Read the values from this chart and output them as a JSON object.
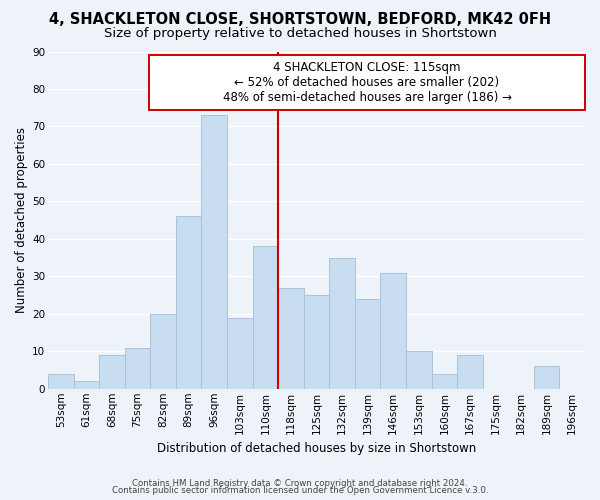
{
  "title": "4, SHACKLETON CLOSE, SHORTSTOWN, BEDFORD, MK42 0FH",
  "subtitle": "Size of property relative to detached houses in Shortstown",
  "xlabel": "Distribution of detached houses by size in Shortstown",
  "ylabel": "Number of detached properties",
  "footer_line1": "Contains HM Land Registry data © Crown copyright and database right 2024.",
  "footer_line2": "Contains public sector information licensed under the Open Government Licence v.3.0.",
  "bin_labels": [
    "53sqm",
    "61sqm",
    "68sqm",
    "75sqm",
    "82sqm",
    "89sqm",
    "96sqm",
    "103sqm",
    "110sqm",
    "118sqm",
    "125sqm",
    "132sqm",
    "139sqm",
    "146sqm",
    "153sqm",
    "160sqm",
    "167sqm",
    "175sqm",
    "182sqm",
    "189sqm",
    "196sqm"
  ],
  "bar_heights": [
    4,
    2,
    9,
    11,
    20,
    46,
    73,
    19,
    38,
    27,
    25,
    35,
    24,
    31,
    10,
    4,
    9,
    0,
    0,
    6,
    0
  ],
  "bar_color": "#c9ddf0",
  "bar_edge_color": "#a8c4dc",
  "vline_color": "#cc0000",
  "ann_line1": "4 SHACKLETON CLOSE: 115sqm",
  "ann_line2": "← 52% of detached houses are smaller (202)",
  "ann_line3": "48% of semi-detached houses are larger (186) →",
  "ylim": [
    0,
    90
  ],
  "yticks": [
    0,
    10,
    20,
    30,
    40,
    50,
    60,
    70,
    80,
    90
  ],
  "bg_color": "#eef2f9",
  "plot_bg_color": "#eef2f9",
  "grid_color": "#ffffff",
  "title_fontsize": 10.5,
  "subtitle_fontsize": 9.5,
  "axis_label_fontsize": 8.5,
  "tick_fontsize": 7.5,
  "ann_fontsize": 8.5,
  "footer_fontsize": 6.2
}
